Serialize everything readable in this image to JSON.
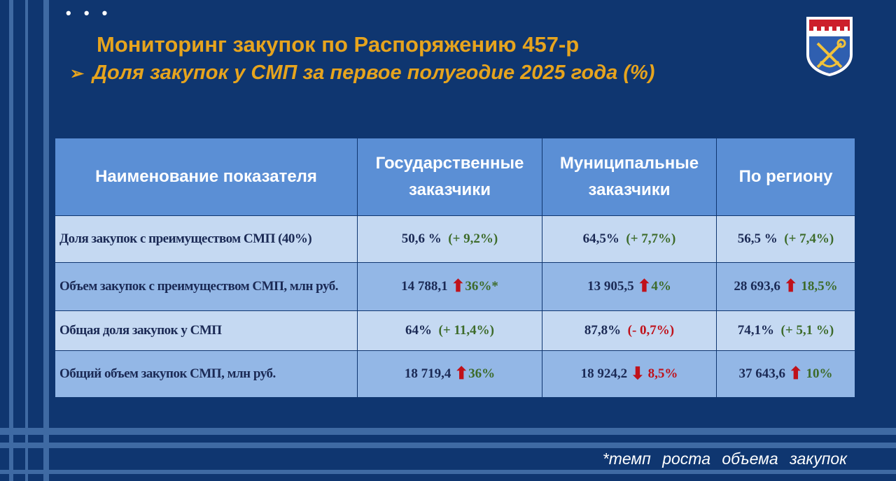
{
  "header": {
    "dots": "• • •",
    "title": "Мониторинг закупок по Распоряжению 457-р",
    "subtitle_bullet": "➢",
    "subtitle": "Доля закупок у СМП за первое полугодие 2025 года (%)"
  },
  "table": {
    "headers": [
      "Наименование показателя",
      "Государственные заказчики",
      "Муниципальные заказчики",
      "По региону"
    ],
    "rows": [
      {
        "label": "Доля закупок с преимуществом СМП  (40%)",
        "cells": [
          {
            "value": "50,6 %",
            "change": "(+ 9,2%)",
            "change_color": "green"
          },
          {
            "value": "64,5%",
            "change": "(+ 7,7%)",
            "change_color": "green"
          },
          {
            "value": "56,5 %",
            "change": "(+ 7,4%)",
            "change_color": "green"
          }
        ]
      },
      {
        "label": "Объем закупок с преимуществом СМП, млн руб.",
        "cells": [
          {
            "value": "14 788,1",
            "arrow": "⬆",
            "change": "36%*",
            "change_color": "green"
          },
          {
            "value": "13 905,5",
            "arrow": "⬆",
            "change": "4%",
            "change_color": "green"
          },
          {
            "value": "28 693,6",
            "arrow": "⬆",
            "change": "18,5%",
            "change_color": "green"
          }
        ]
      },
      {
        "label": "Общая доля закупок у СМП",
        "cells": [
          {
            "value": "64%",
            "change": "(+ 11,4%)",
            "change_color": "green"
          },
          {
            "value": "87,8%",
            "change": "(- 0,7%)",
            "change_color": "red"
          },
          {
            "value": "74,1%",
            "change": "(+ 5,1 %)",
            "change_color": "green"
          }
        ]
      },
      {
        "label": "Общий объем закупок СМП, млн руб.",
        "cells": [
          {
            "value": "18 719,4",
            "arrow": "⬆",
            "change": "36%",
            "change_color": "green"
          },
          {
            "value": "18 924,2",
            "arrow": "⬇",
            "change": "8,5%",
            "change_color": "red"
          },
          {
            "value": "37 643,6",
            "arrow": "⬆",
            "change": "10%",
            "change_color": "green"
          }
        ]
      }
    ]
  },
  "footnote": "*темп роста объема закупок",
  "colors": {
    "background": "#0f3670",
    "title": "#e6a41e",
    "header_bg": "#5b8fd5",
    "row_light": "#c5d9f2",
    "row_mid": "#93b7e6",
    "positive": "#3d6b2a",
    "negative": "#c0111a"
  },
  "emblem": {
    "icon": "coat-of-arms-icon"
  }
}
